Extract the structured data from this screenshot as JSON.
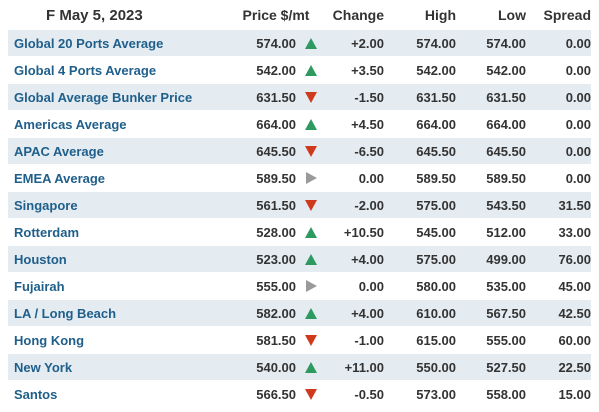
{
  "header": {
    "date": "F May 5, 2023",
    "price": "Price $/mt",
    "change": "Change",
    "high": "High",
    "low": "Low",
    "spread": "Spread"
  },
  "colors": {
    "up": "#2e9a5f",
    "down": "#d03a1c",
    "flat": "#9a9a9a",
    "link": "#1f5f8b",
    "row_alt": "#e4ebf1"
  },
  "rows": [
    {
      "port": "Global 20 Ports Average",
      "price": "574.00",
      "dir": "up",
      "change": "+2.00",
      "high": "574.00",
      "low": "574.00",
      "spread": "0.00"
    },
    {
      "port": "Global 4 Ports Average",
      "price": "542.00",
      "dir": "up",
      "change": "+3.50",
      "high": "542.00",
      "low": "542.00",
      "spread": "0.00"
    },
    {
      "port": "Global Average Bunker Price",
      "price": "631.50",
      "dir": "down",
      "change": "-1.50",
      "high": "631.50",
      "low": "631.50",
      "spread": "0.00"
    },
    {
      "port": "Americas Average",
      "price": "664.00",
      "dir": "up",
      "change": "+4.50",
      "high": "664.00",
      "low": "664.00",
      "spread": "0.00"
    },
    {
      "port": "APAC Average",
      "price": "645.50",
      "dir": "down",
      "change": "-6.50",
      "high": "645.50",
      "low": "645.50",
      "spread": "0.00"
    },
    {
      "port": "EMEA Average",
      "price": "589.50",
      "dir": "flat",
      "change": "0.00",
      "high": "589.50",
      "low": "589.50",
      "spread": "0.00"
    },
    {
      "port": "Singapore",
      "price": "561.50",
      "dir": "down",
      "change": "-2.00",
      "high": "575.00",
      "low": "543.50",
      "spread": "31.50"
    },
    {
      "port": "Rotterdam",
      "price": "528.00",
      "dir": "up",
      "change": "+10.50",
      "high": "545.00",
      "low": "512.00",
      "spread": "33.00"
    },
    {
      "port": "Houston",
      "price": "523.00",
      "dir": "up",
      "change": "+4.00",
      "high": "575.00",
      "low": "499.00",
      "spread": "76.00"
    },
    {
      "port": "Fujairah",
      "price": "555.00",
      "dir": "flat",
      "change": "0.00",
      "high": "580.00",
      "low": "535.00",
      "spread": "45.00"
    },
    {
      "port": "LA / Long Beach",
      "price": "582.00",
      "dir": "up",
      "change": "+4.00",
      "high": "610.00",
      "low": "567.50",
      "spread": "42.50"
    },
    {
      "port": "Hong Kong",
      "price": "581.50",
      "dir": "down",
      "change": "-1.00",
      "high": "615.00",
      "low": "555.00",
      "spread": "60.00"
    },
    {
      "port": "New York",
      "price": "540.00",
      "dir": "up",
      "change": "+11.00",
      "high": "550.00",
      "low": "527.50",
      "spread": "22.50"
    },
    {
      "port": "Santos",
      "price": "566.50",
      "dir": "down",
      "change": "-0.50",
      "high": "573.00",
      "low": "558.00",
      "spread": "15.00"
    }
  ]
}
